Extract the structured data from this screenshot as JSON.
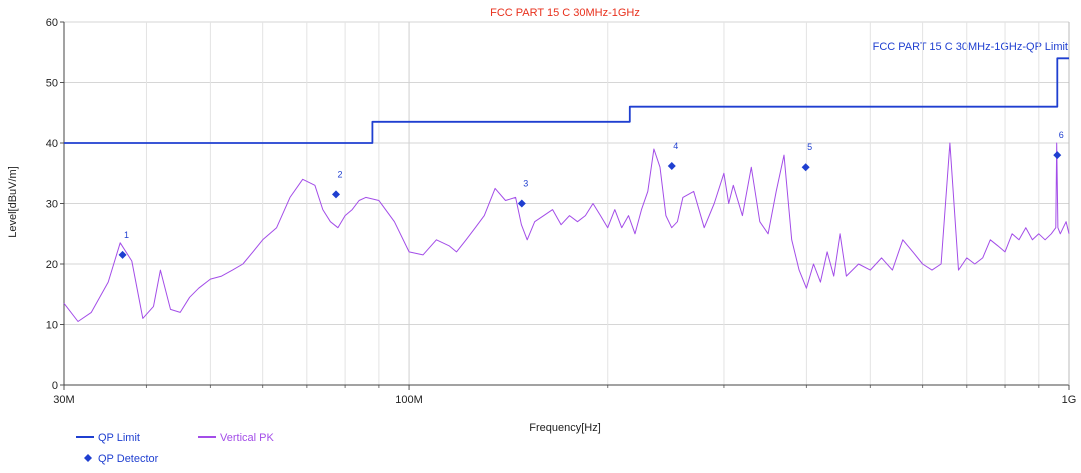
{
  "chart_data": {
    "type": "line",
    "title": "FCC PART 15 C 30MHz-1GHz",
    "xlabel": "Frequency[Hz]",
    "ylabel": "Level[dBuV/m]",
    "x_scale": "log",
    "xlim": [
      30,
      1000
    ],
    "ylim": [
      0,
      60
    ],
    "x_unit": "MHz",
    "y_ticks": [
      0,
      10,
      20,
      30,
      40,
      50,
      60
    ],
    "x_tick_labels": [
      {
        "value": 30,
        "label": "30M"
      },
      {
        "value": 100,
        "label": "100M"
      },
      {
        "value": 1000,
        "label": "1G"
      }
    ],
    "x_minor_ticks": [
      40,
      50,
      60,
      70,
      80,
      90,
      200,
      300,
      400,
      500,
      600,
      700,
      800,
      900
    ],
    "grid": true,
    "limit_label": "FCC PART 15 C 30MHz-1GHz-QP Limit",
    "series": [
      {
        "name": "QP Limit",
        "color": "#1f3fd0",
        "kind": "step",
        "x": [
          30,
          88,
          88,
          216,
          216,
          960,
          960,
          1000
        ],
        "y": [
          40,
          40,
          43.5,
          43.5,
          46,
          46,
          54,
          54
        ]
      },
      {
        "name": "Vertical PK",
        "color": "#a34de8",
        "kind": "line",
        "x": [
          30,
          31.5,
          33,
          35,
          36.5,
          38,
          39.5,
          41,
          42,
          43.5,
          45,
          46.5,
          48,
          50,
          52,
          54,
          56,
          58,
          60,
          63,
          66,
          69,
          72,
          74,
          76,
          78,
          80,
          82,
          84,
          86,
          90,
          95,
          100,
          105,
          110,
          115,
          118,
          122,
          126,
          130,
          135,
          140,
          145,
          148,
          151,
          155,
          160,
          165,
          170,
          175,
          180,
          185,
          190,
          195,
          200,
          205,
          210,
          215,
          220,
          225,
          230,
          235,
          240,
          245,
          250,
          255,
          260,
          270,
          280,
          290,
          300,
          305,
          310,
          320,
          330,
          340,
          350,
          360,
          370,
          380,
          390,
          400,
          410,
          420,
          430,
          440,
          450,
          460,
          480,
          500,
          520,
          540,
          560,
          580,
          600,
          620,
          640,
          660,
          680,
          700,
          720,
          740,
          760,
          780,
          800,
          820,
          840,
          860,
          880,
          900,
          920,
          940,
          955,
          958,
          962,
          970,
          980,
          990,
          1000
        ],
        "y": [
          13.5,
          10.5,
          12,
          17,
          23.5,
          20.5,
          11,
          13,
          19,
          12.5,
          12,
          14.5,
          16,
          17.5,
          18,
          19,
          20,
          22,
          24,
          26,
          31,
          34,
          33,
          29,
          27,
          26,
          28,
          29,
          30.5,
          31,
          30.5,
          27,
          22,
          21.5,
          24,
          23,
          22,
          24,
          26,
          28,
          32.5,
          30.5,
          31,
          26.5,
          24,
          27,
          28,
          29,
          26.5,
          28,
          27,
          28,
          30,
          28,
          26,
          29,
          26,
          28,
          25,
          29,
          32,
          39,
          36,
          28,
          26,
          27,
          31,
          32,
          26,
          30,
          35,
          30,
          33,
          28,
          36,
          27,
          25,
          32,
          38,
          24,
          19,
          16,
          20,
          17,
          22,
          18,
          25,
          18,
          20,
          19,
          21,
          19,
          24,
          22,
          20,
          19,
          20,
          40,
          19,
          21,
          20,
          21,
          24,
          23,
          22,
          25,
          24,
          26,
          24,
          25,
          24,
          25,
          26,
          40,
          26,
          25,
          26,
          27,
          25
        ]
      },
      {
        "name": "QP Detector",
        "color": "#1f3fd0",
        "kind": "marker",
        "labels": [
          "1",
          "2",
          "3",
          "4",
          "5",
          "6"
        ],
        "x": [
          36.8,
          77.5,
          148.2,
          250.1,
          399.0,
          959.8
        ],
        "y": [
          21.5,
          31.5,
          30.0,
          36.2,
          36.0,
          38.0
        ]
      }
    ],
    "legend": {
      "placement": "bottom-left",
      "items": [
        {
          "label": "QP Limit",
          "symbol": "line",
          "color": "#1f3fd0"
        },
        {
          "label": "Vertical PK",
          "symbol": "line",
          "color": "#a34de8"
        },
        {
          "label": "QP Detector",
          "symbol": "diamond",
          "color": "#1f3fd0"
        }
      ]
    }
  }
}
